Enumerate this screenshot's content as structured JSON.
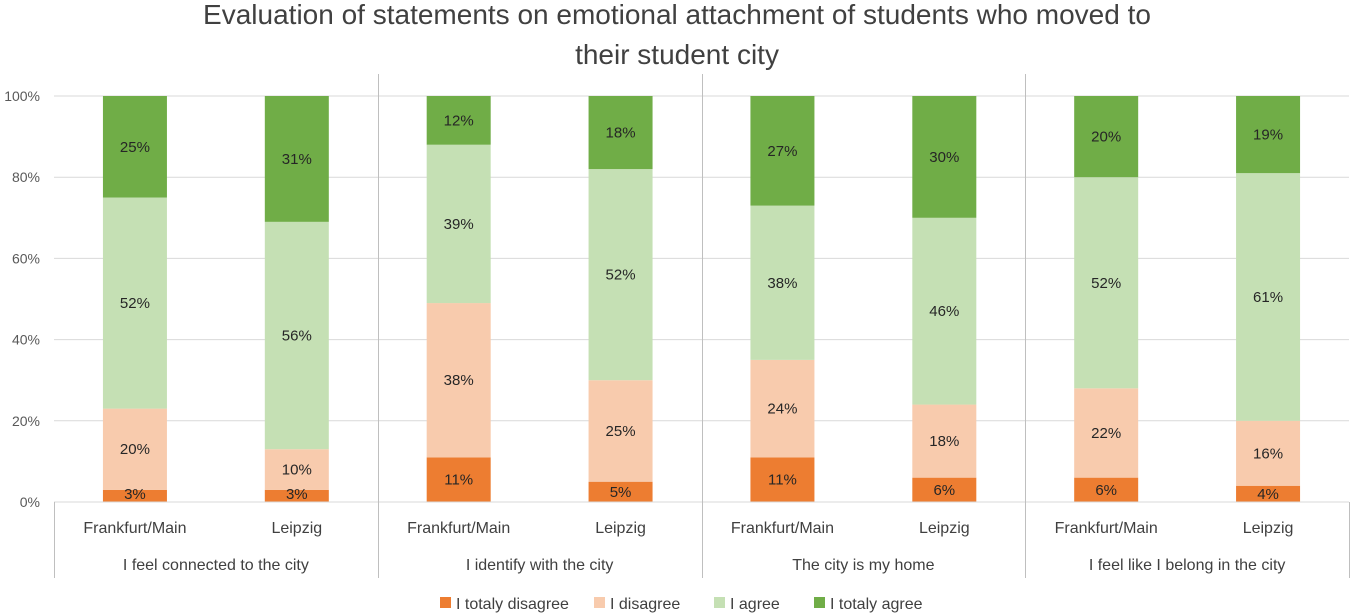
{
  "chart_data": {
    "type": "bar",
    "stacked": true,
    "percent_stacked": true,
    "title": "Evaluation of statements on emotional attachment of students who moved to their student city",
    "title_lines": [
      "Evaluation of statements on emotional attachment of students who moved to",
      "their student city"
    ],
    "xlabel": "",
    "ylabel": "",
    "ylim": [
      0,
      100
    ],
    "yticks": [
      "0%",
      "20%",
      "40%",
      "60%",
      "80%",
      "100%"
    ],
    "groups": [
      "I feel connected to the city",
      "I identify with the city",
      "The city is my home",
      "I feel like I belong in the city"
    ],
    "cities": [
      "Frankfurt/Main",
      "Leipzig"
    ],
    "categories": [
      "Frankfurt/Main",
      "Leipzig",
      "Frankfurt/Main",
      "Leipzig",
      "Frankfurt/Main",
      "Leipzig",
      "Frankfurt/Main",
      "Leipzig"
    ],
    "series": [
      {
        "name": "I totaly disagree",
        "color": "#ED7D31",
        "values": [
          3,
          3,
          11,
          5,
          11,
          6,
          6,
          4
        ],
        "labels": [
          "3%",
          "3%",
          "11%",
          "5%",
          "11%",
          "6%",
          "6%",
          "4%"
        ]
      },
      {
        "name": "I disagree",
        "color": "#F8CBAD",
        "values": [
          20,
          10,
          38,
          25,
          24,
          18,
          22,
          16
        ],
        "labels": [
          "20%",
          "10%",
          "38%",
          "25%",
          "24%",
          "18%",
          "22%",
          "16%"
        ]
      },
      {
        "name": "I agree",
        "color": "#C5E0B4",
        "values": [
          52,
          56,
          39,
          52,
          38,
          46,
          52,
          61
        ],
        "labels": [
          "52%",
          "56%",
          "39%",
          "52%",
          "38%",
          "46%",
          "52%",
          "61%"
        ]
      },
      {
        "name": "I totaly agree",
        "color": "#70AD47",
        "values": [
          25,
          31,
          12,
          18,
          27,
          30,
          20,
          19
        ],
        "labels": [
          "25%",
          "31%",
          "12%",
          "18%",
          "27%",
          "30%",
          "20%",
          "19%"
        ]
      }
    ],
    "grid": true,
    "legend_position": "bottom"
  }
}
